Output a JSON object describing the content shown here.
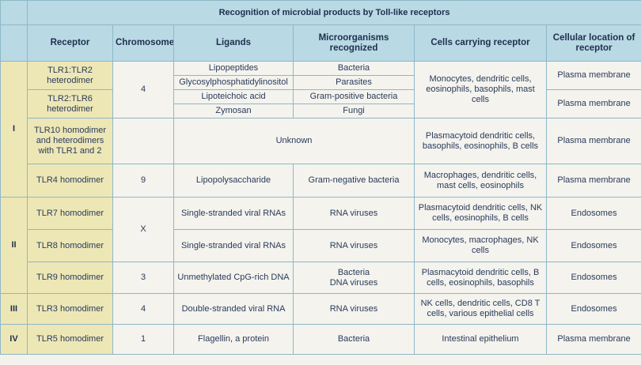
{
  "title": "Recognition of microbial products by Toll-like receptors",
  "headers": {
    "receptor": "Receptor",
    "chromosome": "Chromosome",
    "ligands": "Ligands",
    "microorganisms": "Microorganisms recognized",
    "cells": "Cells carrying receptor",
    "location": "Cellular location of receptor"
  },
  "classes": [
    "I",
    "II",
    "III",
    "IV"
  ],
  "rows": {
    "tlr1_2": {
      "receptor": "TLR1:TLR2 heterodimer",
      "ligands": [
        "Lipopeptides",
        "Glycosylphosphatidylinositol"
      ],
      "microbes": [
        "Bacteria",
        "Parasites"
      ],
      "location": "Plasma membrane"
    },
    "tlr2_6": {
      "receptor": "TLR2:TLR6 heterodimer",
      "ligands": [
        "Lipoteichoic acid",
        "Zymosan"
      ],
      "microbes": [
        "Gram-positive bacteria",
        "Fungi"
      ],
      "location": "Plasma membrane"
    },
    "tlr_group1_cells": "Monocytes, dendritic cells, eosinophils, basophils, mast cells",
    "tlr_group1_chromosome": "4",
    "tlr10": {
      "receptor": "TLR10 homodimer and heterodimers with TLR1 and 2",
      "ligands_microbes": "Unknown",
      "cells": "Plasmacytoid dendritic cells, basophils, eosinophils, B cells",
      "location": "Plasma membrane"
    },
    "tlr4": {
      "receptor": "TLR4 homodimer",
      "chromosome": "9",
      "ligand": "Lipopolysaccharide",
      "microbes": "Gram-negative bacteria",
      "cells": "Macrophages, dendritic cells, mast cells, eosinophils",
      "location": "Plasma membrane"
    },
    "tlr7": {
      "receptor": "TLR7 homodimer",
      "ligand": "Single-stranded viral RNAs",
      "microbes": "RNA viruses",
      "cells": "Plasmacytoid dendritic cells, NK cells, eosinophils, B cells",
      "location": "Endosomes"
    },
    "tlr7_8_chromosome": "X",
    "tlr8": {
      "receptor": "TLR8 homodimer",
      "ligand": "Single-stranded viral RNAs",
      "microbes": "RNA viruses",
      "cells": "Monocytes, macrophages, NK cells",
      "location": "Endosomes"
    },
    "tlr9": {
      "receptor": "TLR9 homodimer",
      "chromosome": "3",
      "ligand": "Unmethylated CpG-rich DNA",
      "microbes": [
        "Bacteria",
        "DNA viruses"
      ],
      "cells": "Plasmacytoid dendritic cells, B cells, eosinophils, basophils",
      "location": "Endosomes"
    },
    "tlr3": {
      "receptor": "TLR3 homodimer",
      "chromosome": "4",
      "ligand": "Double-stranded viral RNA",
      "microbes": "RNA viruses",
      "cells": "NK cells, dendritic cells, CD8 T cells, various epithelial cells",
      "location": "Endosomes"
    },
    "tlr5": {
      "receptor": "TLR5 homodimer",
      "chromosome": "1",
      "ligand": "Flagellin, a protein",
      "microbes": "Bacteria",
      "cells": "Intestinal epithelium",
      "location": "Plasma membrane"
    }
  }
}
